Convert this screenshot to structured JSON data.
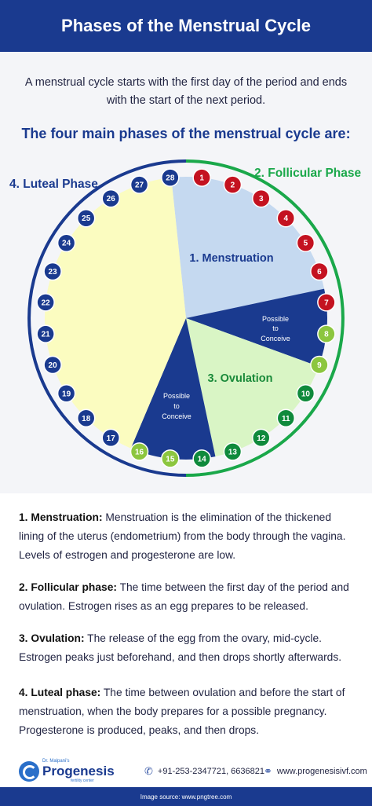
{
  "header": {
    "title": "Phases of the Menstrual Cycle"
  },
  "intro": {
    "text": "A menstrual cycle starts with the first day of the period and ends with the start of the next period.",
    "subtitle": "The four main phases of the menstrual cycle are:"
  },
  "diagram": {
    "phase_labels": {
      "luteal": "4. Luteal Phase",
      "follicular": "2. Follicular Phase",
      "menstruation": "1. Menstruation",
      "ovulation": "3. Ovulation"
    },
    "fertile_labels": {
      "right": [
        "Possible",
        "to",
        "Conceive"
      ],
      "bottom": [
        "Possible",
        "to",
        "Conceive"
      ]
    },
    "days": [
      "1",
      "2",
      "3",
      "4",
      "5",
      "6",
      "7",
      "8",
      "9",
      "10",
      "11",
      "12",
      "13",
      "14",
      "15",
      "16",
      "17",
      "18",
      "19",
      "20",
      "21",
      "22",
      "23",
      "24",
      "25",
      "26",
      "27",
      "28"
    ],
    "colors": {
      "menstruation_day": "#c41220",
      "fertile_day": "#8cc63f",
      "ovulation_day": "#0f8a3c",
      "luteal_day": "#1a3a8f",
      "menstruation_sector": "#c5d9f0",
      "follicular_sector": "#1a3a8f",
      "ovulation_sector": "#d9f5c5",
      "luteal_sector": "#fbfcc0"
    }
  },
  "descriptions": [
    {
      "title": "1. Menstruation:",
      "text": "Menstruation is the elimination of the thickened lining of the uterus (endometrium) from the body through the vagina. Levels of estrogen and progesterone are low."
    },
    {
      "title": "2. Follicular phase:",
      "text": "The time between the first day of the period and ovulation. Estrogen rises as an egg prepares to be released."
    },
    {
      "title": "3. Ovulation:",
      "text": "The release of the egg from the ovary, mid-cycle. Estrogen peaks just beforehand, and then drops shortly afterwards."
    },
    {
      "title": "4. Luteal phase:",
      "text": "The time between ovulation and before the start of menstruation, when the body prepares for a possible pregnancy. Progesterone is produced, peaks, and then drops."
    }
  ],
  "footer": {
    "logo_top": "Dr. Malpani's",
    "logo_name": "Progenesis",
    "logo_sub": "fertility center",
    "phone": "+91-253-2347721, 6636821",
    "website": "www.progenesisivf.com",
    "image_source": "Image source: www.pngtree.com"
  }
}
